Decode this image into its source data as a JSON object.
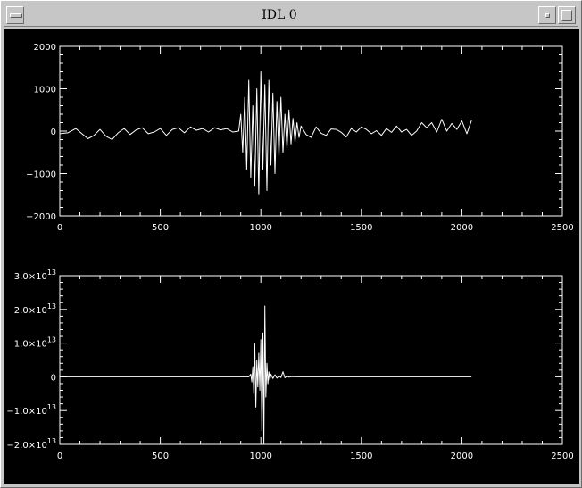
{
  "window": {
    "title": "IDL 0"
  },
  "colors": {
    "background": "#000000",
    "foreground": "#ffffff",
    "frame": "#c6c6c6"
  },
  "chart_data": [
    {
      "type": "line",
      "title": "",
      "xlabel": "",
      "ylabel": "",
      "xlim": [
        0,
        2500
      ],
      "ylim": [
        -2000,
        2000
      ],
      "x_ticks": [
        {
          "value": 0,
          "label": "0"
        },
        {
          "value": 500,
          "label": "500"
        },
        {
          "value": 1000,
          "label": "1000"
        },
        {
          "value": 1500,
          "label": "1500"
        },
        {
          "value": 2000,
          "label": "2000"
        },
        {
          "value": 2500,
          "label": "2500"
        }
      ],
      "y_ticks": [
        {
          "value": -2000,
          "label": "−2000"
        },
        {
          "value": -1000,
          "label": "−1000"
        },
        {
          "value": 0,
          "label": "0"
        },
        {
          "value": 1000,
          "label": "1000"
        },
        {
          "value": 2000,
          "label": "2000"
        }
      ],
      "grid": false,
      "series": [
        {
          "color": "#ffffff",
          "x": [
            0,
            40,
            80,
            110,
            140,
            170,
            200,
            230,
            260,
            290,
            320,
            350,
            380,
            410,
            440,
            470,
            500,
            530,
            560,
            590,
            620,
            650,
            680,
            710,
            740,
            770,
            800,
            830,
            860,
            890,
            900,
            910,
            920,
            930,
            940,
            950,
            960,
            970,
            980,
            990,
            1000,
            1010,
            1020,
            1030,
            1040,
            1050,
            1060,
            1070,
            1080,
            1090,
            1100,
            1110,
            1120,
            1130,
            1140,
            1150,
            1160,
            1170,
            1180,
            1190,
            1200,
            1225,
            1250,
            1275,
            1300,
            1325,
            1350,
            1375,
            1400,
            1425,
            1450,
            1475,
            1500,
            1525,
            1550,
            1575,
            1600,
            1625,
            1650,
            1675,
            1700,
            1725,
            1750,
            1775,
            1800,
            1825,
            1850,
            1875,
            1900,
            1925,
            1950,
            1975,
            2000,
            2025,
            2048
          ],
          "y": [
            -60,
            -40,
            60,
            -60,
            -180,
            -100,
            40,
            -120,
            -200,
            -40,
            60,
            -80,
            30,
            80,
            -60,
            -20,
            60,
            -100,
            40,
            80,
            -40,
            100,
            20,
            60,
            -20,
            80,
            30,
            60,
            -20,
            0,
            400,
            -500,
            800,
            -900,
            1200,
            -1100,
            600,
            -1300,
            1000,
            -1500,
            1400,
            -900,
            1100,
            -1400,
            1200,
            -800,
            900,
            -1000,
            700,
            -600,
            800,
            -500,
            400,
            -400,
            500,
            -300,
            300,
            -250,
            200,
            -150,
            120,
            -80,
            -150,
            100,
            -50,
            -100,
            50,
            40,
            -30,
            -140,
            60,
            -20,
            100,
            40,
            -60,
            10,
            -100,
            60,
            -30,
            120,
            -20,
            40,
            -100,
            0,
            200,
            80,
            200,
            -20,
            280,
            0,
            180,
            40,
            240,
            -60,
            250
          ]
        }
      ]
    },
    {
      "type": "line",
      "title": "",
      "xlabel": "",
      "ylabel": "",
      "xlim": [
        0,
        2500
      ],
      "ylim": [
        -20000000000000.0,
        30000000000000.0
      ],
      "x_ticks": [
        {
          "value": 0,
          "label": "0"
        },
        {
          "value": 500,
          "label": "500"
        },
        {
          "value": 1000,
          "label": "1000"
        },
        {
          "value": 1500,
          "label": "1500"
        },
        {
          "value": 2000,
          "label": "2000"
        },
        {
          "value": 2500,
          "label": "2500"
        }
      ],
      "y_ticks": [
        {
          "value": -20000000000000.0,
          "mantissa": "−2.0×10",
          "exp": "13"
        },
        {
          "value": -10000000000000.0,
          "mantissa": "−1.0×10",
          "exp": "13"
        },
        {
          "value": 0,
          "mantissa": "0",
          "exp": ""
        },
        {
          "value": 10000000000000.0,
          "mantissa": "1.0×10",
          "exp": "13"
        },
        {
          "value": 20000000000000.0,
          "mantissa": "2.0×10",
          "exp": "13"
        },
        {
          "value": 30000000000000.0,
          "mantissa": "3.0×10",
          "exp": "13"
        }
      ],
      "grid": false,
      "series": [
        {
          "color": "#ffffff",
          "x": [
            0,
            900,
            940,
            950,
            955,
            960,
            965,
            970,
            975,
            980,
            985,
            990,
            995,
            1000,
            1005,
            1010,
            1015,
            1020,
            1025,
            1030,
            1035,
            1040,
            1045,
            1050,
            1060,
            1070,
            1080,
            1090,
            1100,
            1110,
            1120,
            1130,
            1140,
            1150,
            1200,
            1500,
            2048
          ],
          "y": [
            0,
            0,
            0,
            800000000000.0,
            -1500000000000.0,
            3000000000000.0,
            -5000000000000.0,
            10000000000000.0,
            -9000000000000.0,
            5000000000000.0,
            -3000000000000.0,
            7000000000000.0,
            -4000000000000.0,
            11000000000000.0,
            -16000000000000.0,
            13000000000000.0,
            -20000000000000.0,
            21000000000000.0,
            -6000000000000.0,
            4000000000000.0,
            -2000000000000.0,
            1500000000000.0,
            -1000000000000.0,
            800000000000.0,
            -500000000000.0,
            600000000000.0,
            -400000000000.0,
            300000000000.0,
            -200000000000.0,
            1500000000000.0,
            -300000000000.0,
            200000000000.0,
            -100000000000.0,
            50000000000.0,
            0,
            0,
            0
          ]
        }
      ]
    }
  ]
}
